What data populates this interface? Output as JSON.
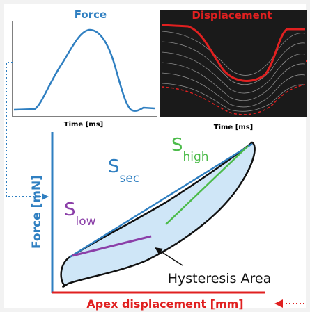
{
  "force_plot": {
    "title": "Force",
    "x_label": "Time [ms]"
  },
  "displacement_plot": {
    "title": "Displacement",
    "x_label": "Time [ms]"
  },
  "main_plot": {
    "y_label": "Force [mN]",
    "x_label": "Apex displacement [mm]",
    "slopes": [
      {
        "symbol": "S",
        "subscript": "sec"
      },
      {
        "symbol": "S",
        "subscript": "high"
      },
      {
        "symbol": "S",
        "subscript": "low"
      }
    ],
    "annotation": "Hysteresis Area"
  }
}
